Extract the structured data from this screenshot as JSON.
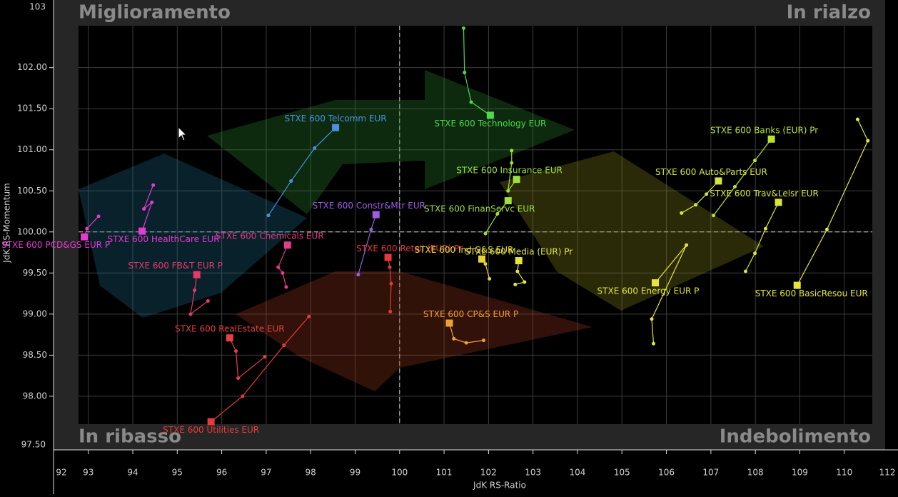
{
  "chart_data": {
    "type": "scatter",
    "x_label": "JdK RS-Ratio",
    "y_label": "JdK RS-Momentum",
    "quadrant_labels": {
      "top_left": "Miglioramento",
      "top_right": "In rialzo",
      "bottom_left": "In ribasso",
      "bottom_right": "Indebolimento"
    },
    "xlim": [
      92.78,
      110.63
    ],
    "ylim": [
      97.66,
      102.51
    ],
    "xticks": [
      93,
      94,
      95,
      96,
      97,
      98,
      99,
      100,
      101,
      102,
      103,
      104,
      105,
      106,
      107,
      108,
      109,
      110
    ],
    "yticks": [
      {
        "value": 98,
        "label": "98.00"
      },
      {
        "value": 98.5,
        "label": "98.50"
      },
      {
        "value": 99,
        "label": "99.00"
      },
      {
        "value": 99.5,
        "label": "99.50"
      },
      {
        "value": 100,
        "label": "100.00"
      },
      {
        "value": 100.5,
        "label": "100.50"
      },
      {
        "value": 101,
        "label": "101.00"
      },
      {
        "value": 101.5,
        "label": "101.50"
      },
      {
        "value": 102,
        "label": "102.00"
      }
    ],
    "xbreaks": [
      92,
      112
    ],
    "ybreaks": [
      {
        "value": 97.5,
        "label": "97.50"
      },
      103
    ],
    "grid": true,
    "series": [
      {
        "name": "STXE 600 Telcomm EUR",
        "color": "#4a90e2",
        "x": [
          97.05,
          97.56,
          98.09,
          98.56
        ],
        "y": [
          100.2,
          100.62,
          101.02,
          101.27
        ]
      },
      {
        "name": "STXE 600 Technology EUR",
        "color": "#4cd94c",
        "x": [
          101.44,
          101.46,
          101.61,
          102.04
        ],
        "y": [
          102.48,
          101.94,
          101.58,
          101.42
        ]
      },
      {
        "name": "STXE 600 Banks (EUR) Pr",
        "color": "#b8e62e",
        "x": [
          107.06,
          107.54,
          107.99,
          108.36
        ],
        "y": [
          100.2,
          100.55,
          100.87,
          101.13
        ]
      },
      {
        "name": "STXE 600 Insurance EUR",
        "color": "#9fe03a",
        "x": [
          102.52,
          102.52,
          102.44,
          102.63
        ],
        "y": [
          100.99,
          100.84,
          100.5,
          100.64
        ]
      },
      {
        "name": "STXE 600 FinanServc EUR",
        "color": "#9fe03a",
        "x": [
          101.93,
          102.2,
          102.44
        ],
        "y": [
          99.98,
          100.22,
          100.38
        ]
      },
      {
        "name": "STXE 600 Auto&Parts EUR",
        "color": "#d4e63a",
        "x": [
          106.34,
          106.66,
          106.9,
          107.17
        ],
        "y": [
          100.23,
          100.33,
          100.46,
          100.62
        ]
      },
      {
        "name": "STXE 600 Trav&Leisr EUR",
        "color": "#d9e63a",
        "x": [
          107.78,
          107.99,
          108.23,
          108.52
        ],
        "y": [
          99.52,
          99.74,
          100.04,
          100.36
        ]
      },
      {
        "name": "STXE 600 BasicResou EUR",
        "color": "#e6e63a",
        "x": [
          110.3,
          110.53,
          109.61,
          108.94
        ],
        "y": [
          101.37,
          101.11,
          100.03,
          99.35
        ]
      },
      {
        "name": "STXE 600 Energy EUR P",
        "color": "#e6e63a",
        "x": [
          105.71,
          105.67,
          106.45,
          105.75
        ],
        "y": [
          98.64,
          98.94,
          99.84,
          99.38
        ]
      },
      {
        "name": "STXE 600 Constr&Mtr EUR",
        "color": "#9c5ce6",
        "x": [
          99.07,
          99.36,
          99.47
        ],
        "y": [
          99.48,
          100.03,
          100.21
        ]
      },
      {
        "name": "STXE 600 Retail (EUR) Pr",
        "color": "#e63a3a",
        "x": [
          99.79,
          99.81,
          99.78,
          99.74
        ],
        "y": [
          99.03,
          99.37,
          99.57,
          99.69
        ]
      },
      {
        "name": "STXE 600 Chemicals EUR",
        "color": "#e63a8c",
        "x": [
          97.45,
          97.37,
          97.27,
          97.48
        ],
        "y": [
          99.33,
          99.5,
          99.57,
          99.84
        ]
      },
      {
        "name": "STXE 600 HealthCare EUR",
        "color": "#e63ad4",
        "x": [
          94.46,
          94.25,
          94.43,
          94.21
        ],
        "y": [
          100.57,
          100.28,
          100.36,
          100.01
        ]
      },
      {
        "name": "STXE 600 PCD&GS EUR P",
        "color": "#e63ad4",
        "x": [
          93.23,
          92.97,
          92.91
        ],
        "y": [
          100.19,
          100.04,
          99.94
        ]
      },
      {
        "name": "STXE 600 FB&T EUR P",
        "color": "#e63a6a",
        "x": [
          95.69,
          95.3,
          95.39,
          95.44
        ],
        "y": [
          99.16,
          99.0,
          99.29,
          99.48
        ]
      },
      {
        "name": "STXE 600 RealEstate EUR",
        "color": "#e64040",
        "x": [
          96.97,
          96.37,
          96.32,
          96.18
        ],
        "y": [
          98.48,
          98.22,
          98.55,
          98.71
        ]
      },
      {
        "name": "STXE 600 Utilities EUR",
        "color": "#e63a3a",
        "x": [
          97.96,
          97.4,
          96.47,
          95.76
        ],
        "y": [
          98.97,
          98.62,
          98.0,
          97.69
        ]
      },
      {
        "name": "STXE 600 CP&S EUR P",
        "color": "#f0a030",
        "x": [
          101.89,
          101.5,
          101.22,
          101.12
        ],
        "y": [
          98.68,
          98.65,
          98.7,
          98.89
        ]
      },
      {
        "name": "STXE 600 Ind G&S EUR",
        "color": "#e6d43a",
        "x": [
          102.02,
          101.93,
          101.85
        ],
        "y": [
          99.43,
          99.61,
          99.67
        ]
      },
      {
        "name": "STXE 600 Media (EUR) Pr",
        "color": "#e6e63a",
        "x": [
          102.6,
          102.81,
          102.65,
          102.68
        ],
        "y": [
          99.36,
          99.39,
          99.52,
          99.65
        ]
      }
    ]
  }
}
